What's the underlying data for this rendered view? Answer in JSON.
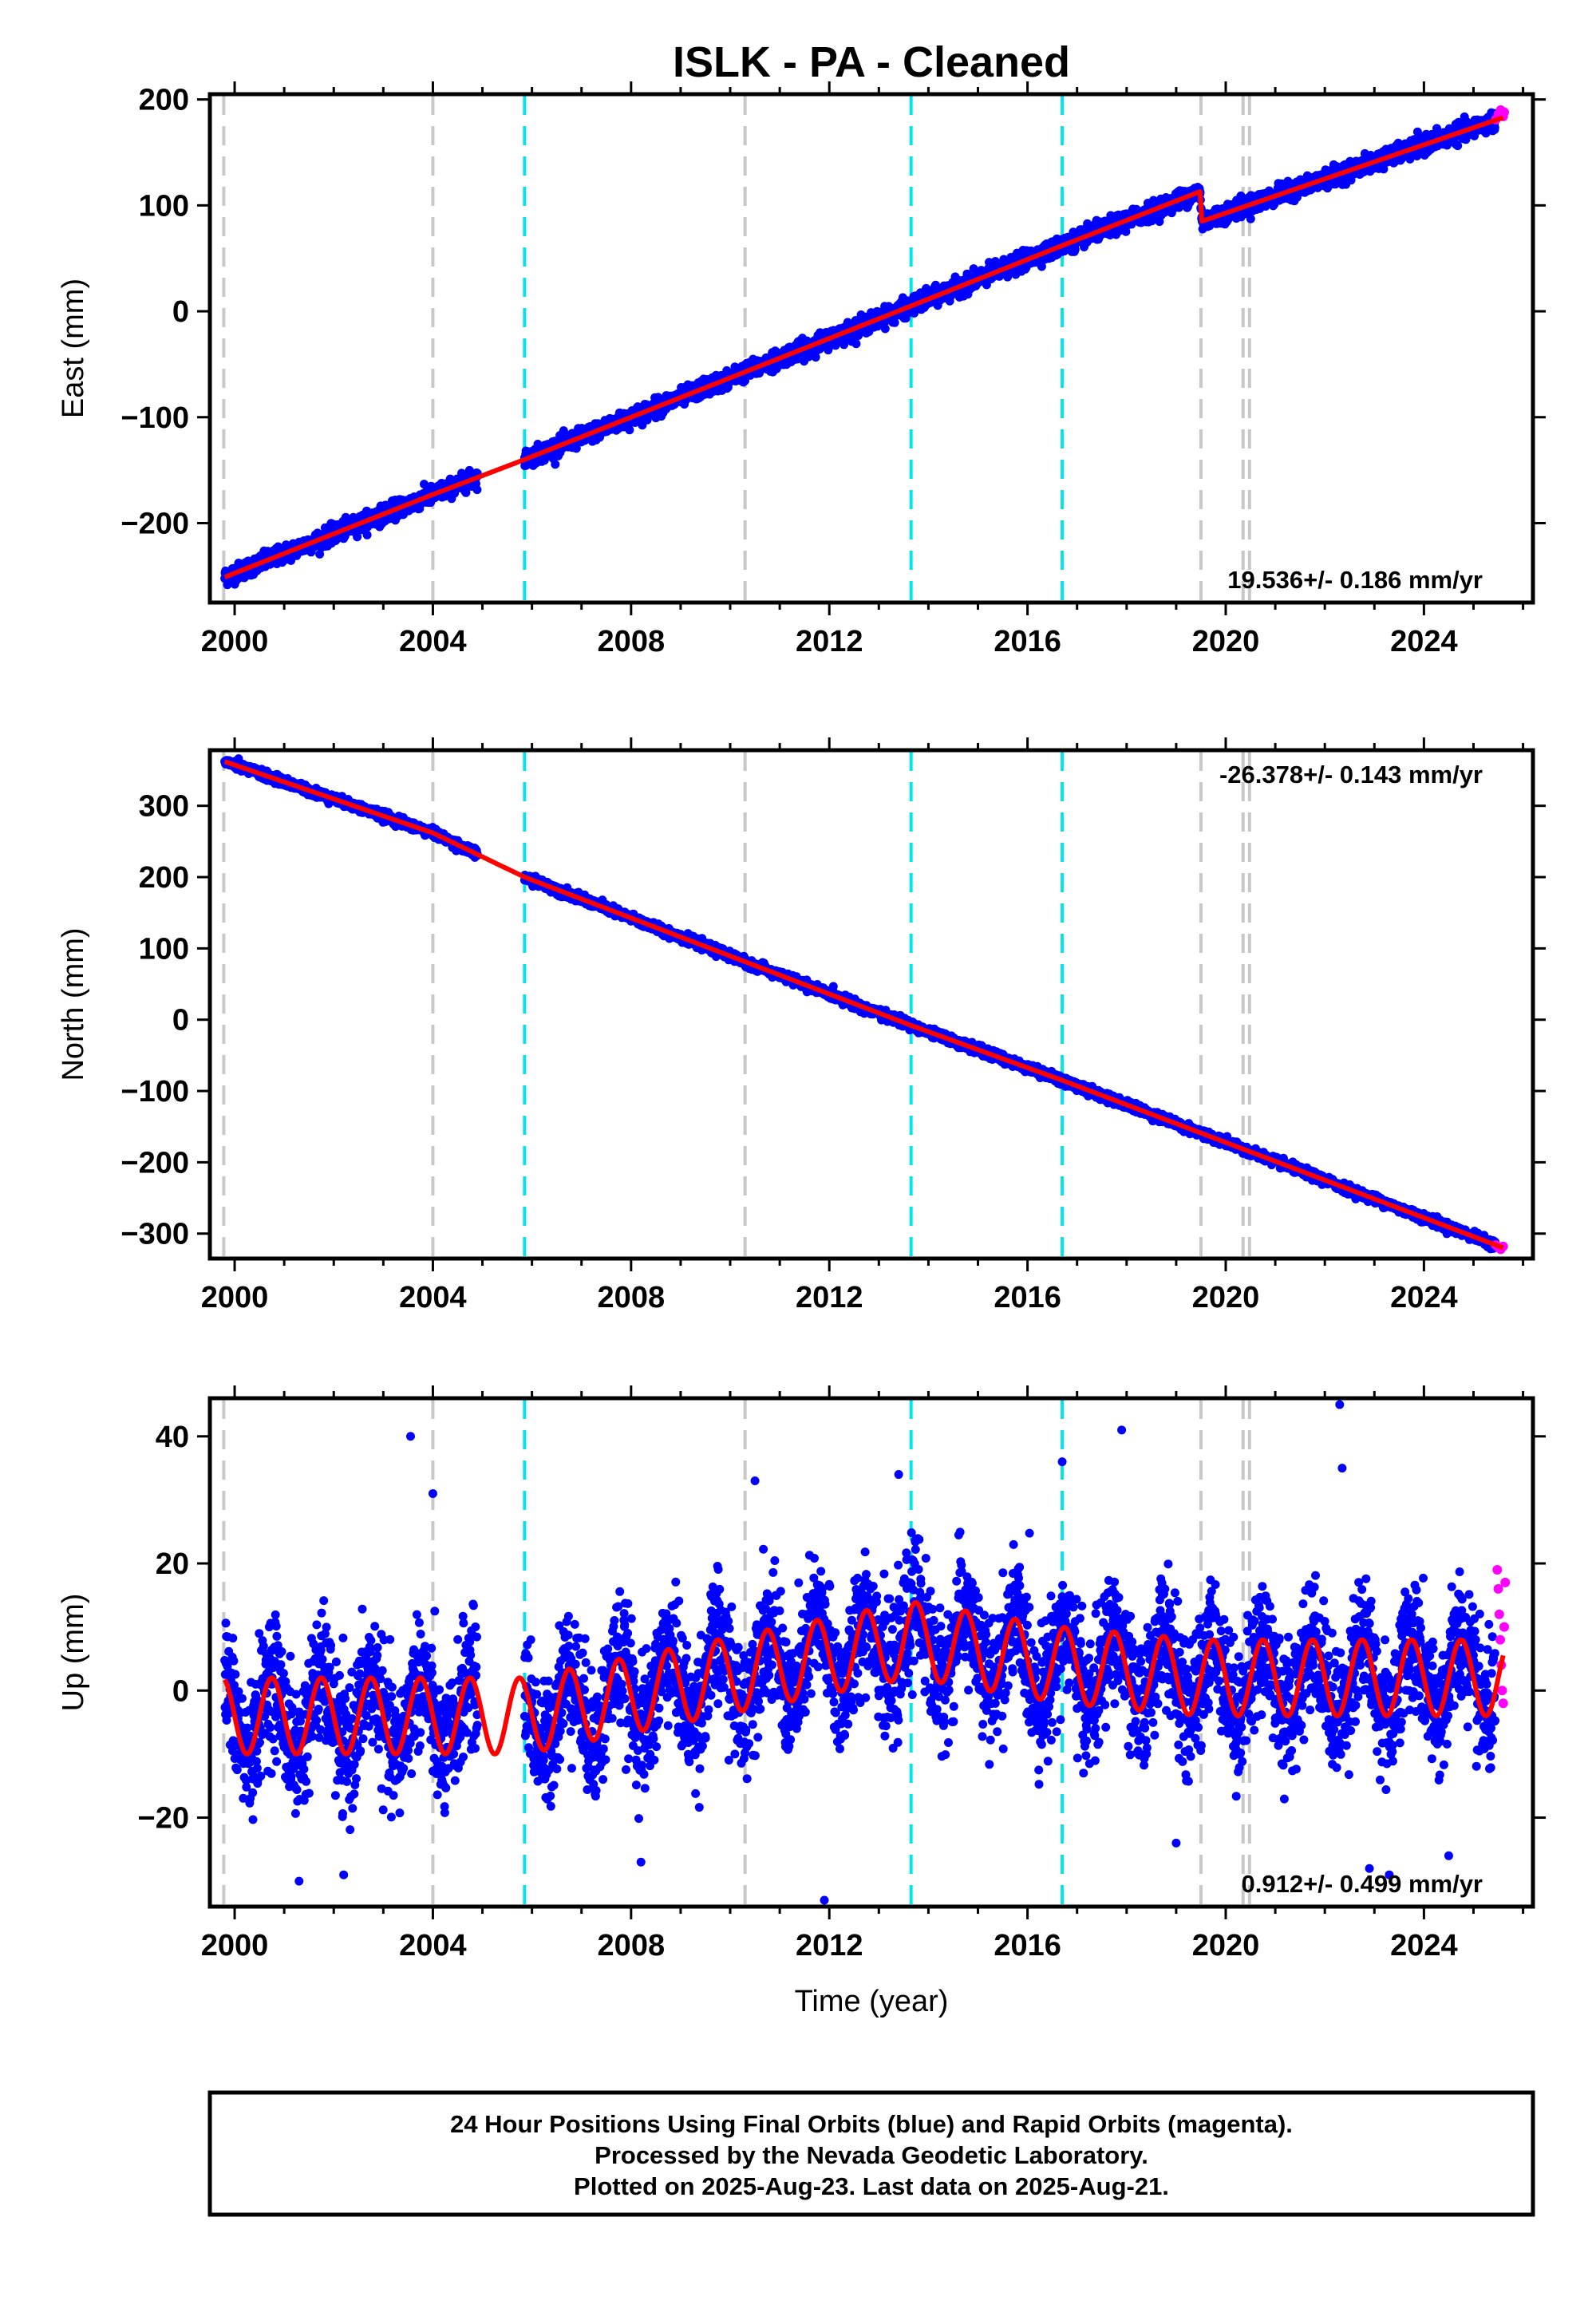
{
  "chart_data": {
    "type": "scatter",
    "title": "ISLK  - PA - Cleaned",
    "xlabel": "Time (year)",
    "xlim": [
      1999.5,
      2026.2
    ],
    "xticks": [
      2000,
      2004,
      2008,
      2012,
      2016,
      2020,
      2024
    ],
    "colors": {
      "final_orbits": "#0000ff",
      "rapid_orbits": "#ff00ff",
      "model": "#ff0000",
      "equipment_change": "#c8c8c8",
      "earthquake": "#00e5ee"
    },
    "equipment_changes": [
      1999.78,
      2004.0,
      2010.3,
      2019.5,
      2020.35,
      2020.48
    ],
    "earthquakes": [
      2005.85,
      2013.65,
      2016.7
    ],
    "panels": [
      {
        "component": "East",
        "ylabel": "East (mm)",
        "ylim": [
          -275,
          205
        ],
        "yticks": [
          -200,
          -100,
          0,
          100,
          200
        ],
        "rate_label": "19.536+/- 0.186 mm/yr",
        "rate_position": "bottom-right",
        "trend_points": [
          [
            1999.8,
            -251
          ],
          [
            2004.0,
            -173
          ],
          [
            2005.85,
            -140
          ],
          [
            2013.65,
            5
          ],
          [
            2016.7,
            62
          ],
          [
            2019.48,
            113
          ],
          [
            2019.52,
            85
          ],
          [
            2025.6,
            183
          ]
        ],
        "gap": [
          2004.9,
          2005.85
        ],
        "noise_mm": 4,
        "rapid_points": [
          [
            2025.45,
            181
          ],
          [
            2025.5,
            186
          ],
          [
            2025.55,
            190
          ],
          [
            2025.6,
            184
          ],
          [
            2025.62,
            188
          ]
        ]
      },
      {
        "component": "North",
        "ylabel": "North (mm)",
        "ylim": [
          -335,
          378
        ],
        "yticks": [
          -300,
          -200,
          -100,
          0,
          100,
          200,
          300
        ],
        "rate_label": "-26.378+/- 0.143 mm/yr",
        "rate_position": "top-right",
        "trend_points": [
          [
            1999.8,
            362
          ],
          [
            2004.0,
            262
          ],
          [
            2005.85,
            200
          ],
          [
            2013.65,
            -8
          ],
          [
            2016.7,
            -85
          ],
          [
            2025.6,
            -320
          ]
        ],
        "gap": [
          2004.9,
          2005.85
        ],
        "noise_mm": 3,
        "rapid_points": [
          [
            2025.45,
            -316
          ],
          [
            2025.5,
            -319
          ],
          [
            2025.55,
            -322
          ],
          [
            2025.6,
            -318
          ]
        ]
      },
      {
        "component": "Up",
        "ylabel": "Up (mm)",
        "ylim": [
          -34,
          46
        ],
        "yticks": [
          -20,
          0,
          20,
          40
        ],
        "rate_label": "0.912+/- 0.499 mm/yr",
        "rate_position": "bottom-right",
        "trend_points": [
          [
            1999.8,
            -4
          ],
          [
            2005.85,
            -4
          ],
          [
            2013.65,
            8
          ],
          [
            2016.7,
            4
          ],
          [
            2019.5,
            2
          ],
          [
            2025.6,
            2
          ]
        ],
        "seasonal_amplitude_mm": 6,
        "gap": [
          2004.9,
          2005.85
        ],
        "noise_mm": 5,
        "outliers": [
          [
            2003.55,
            40
          ],
          [
            2004.0,
            31
          ],
          [
            2010.5,
            33
          ],
          [
            2013.4,
            34
          ],
          [
            2016.7,
            36
          ],
          [
            2017.9,
            41
          ],
          [
            2022.3,
            45
          ],
          [
            2022.35,
            35
          ],
          [
            2001.3,
            -30
          ],
          [
            2002.2,
            -29
          ],
          [
            2008.2,
            -27
          ],
          [
            2011.9,
            -33
          ],
          [
            2019.0,
            -24
          ],
          [
            2022.9,
            -28
          ],
          [
            2023.3,
            -29
          ],
          [
            2024.5,
            -26
          ]
        ],
        "rapid_points": [
          [
            2025.48,
            19
          ],
          [
            2025.5,
            16
          ],
          [
            2025.52,
            12
          ],
          [
            2025.54,
            8
          ],
          [
            2025.56,
            4
          ],
          [
            2025.58,
            0
          ],
          [
            2025.6,
            -2
          ],
          [
            2025.62,
            10
          ],
          [
            2025.64,
            17
          ]
        ]
      }
    ]
  },
  "footer": {
    "line1": "24 Hour Positions Using Final Orbits (blue) and Rapid Orbits (magenta).",
    "line2": "Processed by the Nevada Geodetic Laboratory.",
    "line3": "Plotted on 2025-Aug-23. Last data on 2025-Aug-21."
  }
}
